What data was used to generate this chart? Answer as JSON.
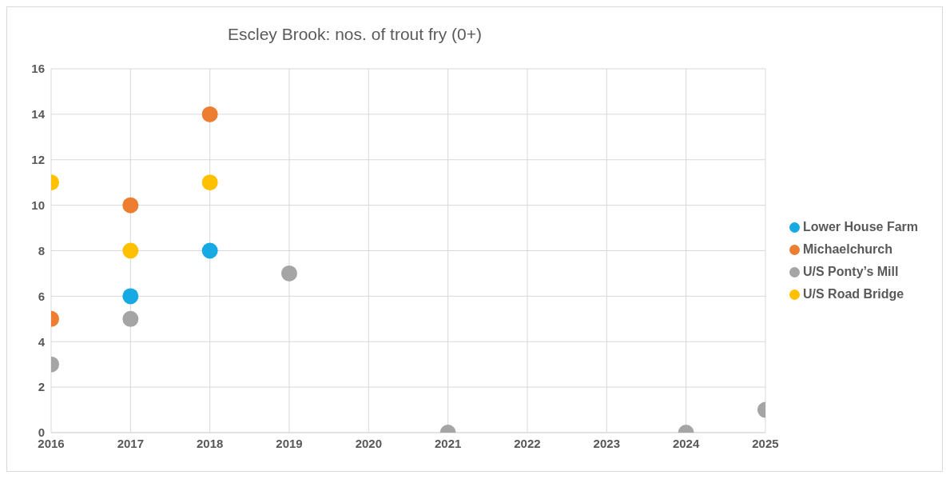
{
  "chart_data": {
    "type": "scatter",
    "title": "Escley Brook: nos. of trout fry (0+)",
    "xlim": [
      2016,
      2025
    ],
    "xticks": [
      2016,
      2017,
      2018,
      2019,
      2020,
      2021,
      2022,
      2023,
      2024,
      2025
    ],
    "ylim": [
      0,
      16
    ],
    "yticks": [
      0,
      2,
      4,
      6,
      8,
      10,
      12,
      14,
      16
    ],
    "grid": true,
    "legend": "right",
    "marker": "circle",
    "series": [
      {
        "name": "Lower House Farm",
        "color": "#17a9e3",
        "x": [
          2017,
          2018
        ],
        "values": [
          6,
          8
        ]
      },
      {
        "name": "Michaelchurch",
        "color": "#ed7d31",
        "x": [
          2016,
          2017,
          2018
        ],
        "values": [
          5,
          10,
          14
        ]
      },
      {
        "name": "U/S Ponty’s Mill",
        "color": "#a5a5a5",
        "x": [
          2016,
          2017,
          2019,
          2021,
          2024,
          2025
        ],
        "values": [
          3,
          5,
          7,
          0,
          0,
          1
        ]
      },
      {
        "name": "U/S Road Bridge",
        "color": "#ffc000",
        "x": [
          2016,
          2017,
          2018
        ],
        "values": [
          11,
          8,
          11
        ]
      }
    ]
  }
}
